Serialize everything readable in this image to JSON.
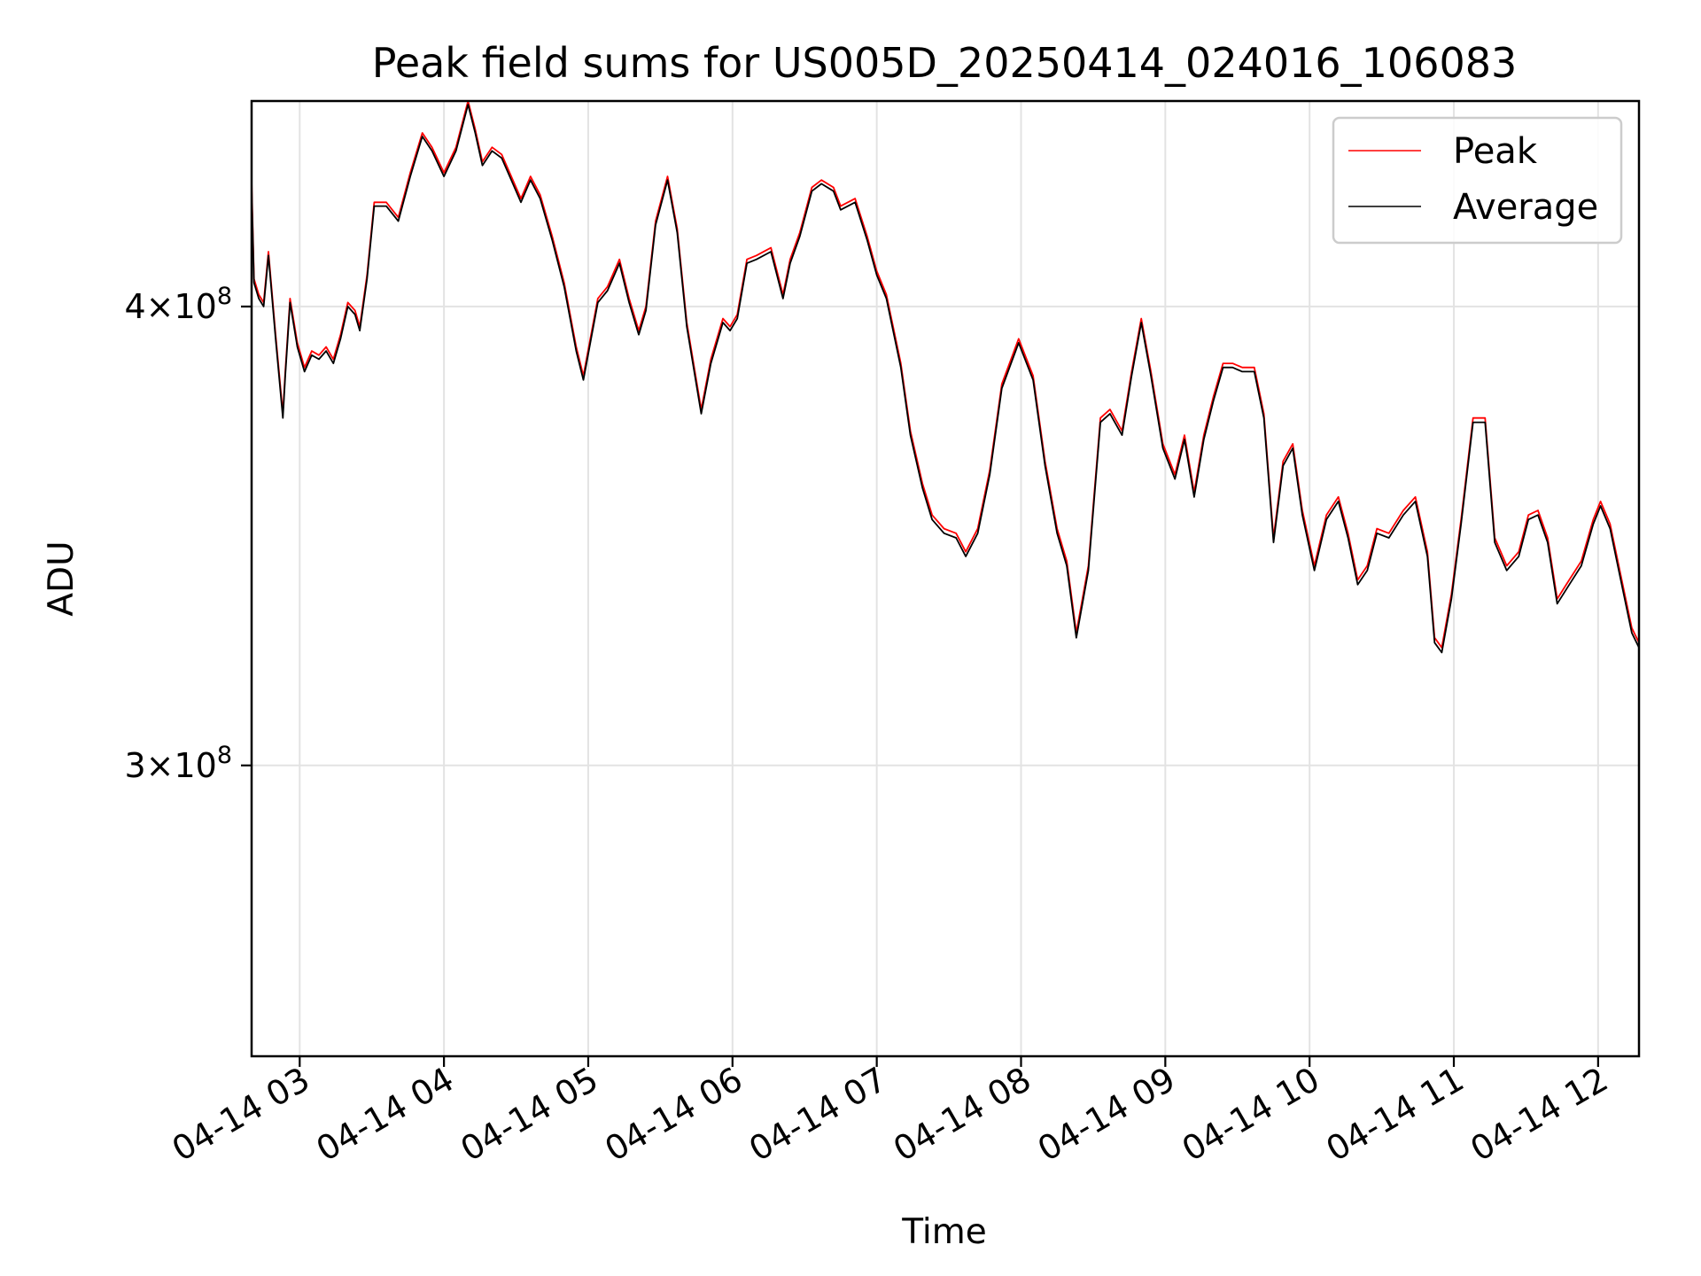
{
  "chart_data": {
    "type": "line",
    "title": "Peak field sums for US005D_20250414_024016_106083",
    "xlabel": "Time",
    "ylabel": "ADU",
    "yscale": "log",
    "grid": true,
    "legend_position": "top-right",
    "xlim": [
      "2025-04-14 02:40",
      "2025-04-14 12:17"
    ],
    "ylim": [
      250000000,
      455000000
    ],
    "x_ticks": [
      {
        "value": "2025-04-14 03:00",
        "label": "04-14 03"
      },
      {
        "value": "2025-04-14 04:00",
        "label": "04-14 04"
      },
      {
        "value": "2025-04-14 05:00",
        "label": "04-14 05"
      },
      {
        "value": "2025-04-14 06:00",
        "label": "04-14 06"
      },
      {
        "value": "2025-04-14 07:00",
        "label": "04-14 07"
      },
      {
        "value": "2025-04-14 08:00",
        "label": "04-14 08"
      },
      {
        "value": "2025-04-14 09:00",
        "label": "04-14 09"
      },
      {
        "value": "2025-04-14 10:00",
        "label": "04-14 10"
      },
      {
        "value": "2025-04-14 11:00",
        "label": "04-14 11"
      },
      {
        "value": "2025-04-14 12:00",
        "label": "04-14 12"
      }
    ],
    "y_ticks": [
      {
        "value": 400000000,
        "base": "4",
        "exp": "8"
      },
      {
        "value": 300000000,
        "base": "3",
        "exp": "8"
      }
    ],
    "x": [
      "2025-04-14 02:40",
      "2025-04-14 02:41",
      "2025-04-14 02:43",
      "2025-04-14 02:45",
      "2025-04-14 02:47",
      "2025-04-14 02:50",
      "2025-04-14 02:53",
      "2025-04-14 02:54",
      "2025-04-14 02:56",
      "2025-04-14 02:59",
      "2025-04-14 03:02",
      "2025-04-14 03:05",
      "2025-04-14 03:08",
      "2025-04-14 03:11",
      "2025-04-14 03:14",
      "2025-04-14 03:17",
      "2025-04-14 03:20",
      "2025-04-14 03:23",
      "2025-04-14 03:25",
      "2025-04-14 03:28",
      "2025-04-14 03:31",
      "2025-04-14 03:36",
      "2025-04-14 03:41",
      "2025-04-14 03:46",
      "2025-04-14 03:51",
      "2025-04-14 03:55",
      "2025-04-14 04:00",
      "2025-04-14 04:05",
      "2025-04-14 04:10",
      "2025-04-14 04:13",
      "2025-04-14 04:16",
      "2025-04-14 04:20",
      "2025-04-14 04:24",
      "2025-04-14 04:28",
      "2025-04-14 04:32",
      "2025-04-14 04:36",
      "2025-04-14 04:40",
      "2025-04-14 04:45",
      "2025-04-14 04:50",
      "2025-04-14 04:55",
      "2025-04-14 04:58",
      "2025-04-14 05:04",
      "2025-04-14 05:08",
      "2025-04-14 05:13",
      "2025-04-14 05:17",
      "2025-04-14 05:21",
      "2025-04-14 05:24",
      "2025-04-14 05:28",
      "2025-04-14 05:33",
      "2025-04-14 05:37",
      "2025-04-14 05:41",
      "2025-04-14 05:47",
      "2025-04-14 05:51",
      "2025-04-14 05:56",
      "2025-04-14 05:59",
      "2025-04-14 06:02",
      "2025-04-14 06:06",
      "2025-04-14 06:10",
      "2025-04-14 06:16",
      "2025-04-14 06:21",
      "2025-04-14 06:24",
      "2025-04-14 06:28",
      "2025-04-14 06:33",
      "2025-04-14 06:37",
      "2025-04-14 06:42",
      "2025-04-14 06:45",
      "2025-04-14 06:51",
      "2025-04-14 06:56",
      "2025-04-14 07:00",
      "2025-04-14 07:04",
      "2025-04-14 07:10",
      "2025-04-14 07:14",
      "2025-04-14 07:19",
      "2025-04-14 07:23",
      "2025-04-14 07:28",
      "2025-04-14 07:33",
      "2025-04-14 07:37",
      "2025-04-14 07:42",
      "2025-04-14 07:47",
      "2025-04-14 07:52",
      "2025-04-14 07:59",
      "2025-04-14 08:05",
      "2025-04-14 08:10",
      "2025-04-14 08:15",
      "2025-04-14 08:19",
      "2025-04-14 08:23",
      "2025-04-14 08:28",
      "2025-04-14 08:33",
      "2025-04-14 08:37",
      "2025-04-14 08:42",
      "2025-04-14 08:46",
      "2025-04-14 08:50",
      "2025-04-14 08:54",
      "2025-04-14 08:59",
      "2025-04-14 09:04",
      "2025-04-14 09:08",
      "2025-04-14 09:12",
      "2025-04-14 09:16",
      "2025-04-14 09:20",
      "2025-04-14 09:24",
      "2025-04-14 09:28",
      "2025-04-14 09:32",
      "2025-04-14 09:37",
      "2025-04-14 09:41",
      "2025-04-14 09:45",
      "2025-04-14 09:49",
      "2025-04-14 09:53",
      "2025-04-14 09:57",
      "2025-04-14 10:02",
      "2025-04-14 10:07",
      "2025-04-14 10:12",
      "2025-04-14 10:16",
      "2025-04-14 10:20",
      "2025-04-14 10:24",
      "2025-04-14 10:28",
      "2025-04-14 10:33",
      "2025-04-14 10:39",
      "2025-04-14 10:44",
      "2025-04-14 10:49",
      "2025-04-14 10:52",
      "2025-04-14 10:55",
      "2025-04-14 10:59",
      "2025-04-14 11:03",
      "2025-04-14 11:08",
      "2025-04-14 11:13",
      "2025-04-14 11:17",
      "2025-04-14 11:22",
      "2025-04-14 11:27",
      "2025-04-14 11:31",
      "2025-04-14 11:35",
      "2025-04-14 11:39",
      "2025-04-14 11:43",
      "2025-04-14 11:48",
      "2025-04-14 11:53",
      "2025-04-14 11:58",
      "2025-04-14 12:01",
      "2025-04-14 12:05",
      "2025-04-14 12:09",
      "2025-04-14 12:14",
      "2025-04-14 12:17"
    ],
    "series": [
      {
        "name": "Peak",
        "color": "#ff0000",
        "values": [
          433000000,
          407000000,
          403000000,
          401000000,
          414000000,
          393000000,
          374000000,
          384000000,
          402000000,
          391000000,
          385000000,
          389000000,
          388000000,
          390000000,
          387000000,
          393000000,
          401000000,
          399000000,
          395000000,
          408000000,
          427000000,
          427000000,
          423000000,
          435000000,
          446000000,
          442000000,
          435000000,
          442000000,
          455000000,
          447000000,
          438000000,
          442000000,
          440000000,
          434000000,
          428000000,
          434000000,
          429000000,
          418000000,
          406000000,
          390000000,
          383000000,
          402000000,
          405000000,
          412000000,
          402000000,
          394000000,
          400000000,
          422000000,
          434000000,
          420000000,
          396000000,
          375000000,
          387000000,
          397000000,
          395000000,
          398000000,
          412000000,
          413000000,
          415000000,
          403000000,
          412000000,
          419000000,
          431000000,
          433000000,
          431000000,
          426000000,
          428000000,
          418000000,
          409000000,
          403000000,
          386000000,
          370000000,
          358000000,
          351000000,
          348000000,
          347000000,
          343000000,
          348000000,
          361000000,
          381000000,
          392000000,
          383000000,
          363000000,
          348000000,
          341000000,
          326000000,
          340000000,
          373000000,
          375000000,
          370000000,
          384000000,
          397000000,
          384000000,
          367000000,
          360000000,
          369000000,
          356000000,
          369000000,
          378000000,
          386000000,
          386000000,
          385000000,
          385000000,
          374000000,
          346000000,
          363000000,
          367000000,
          352000000,
          340000000,
          351000000,
          355000000,
          347000000,
          337000000,
          340000000,
          348000000,
          347000000,
          352000000,
          355000000,
          343000000,
          325000000,
          323000000,
          334000000,
          350000000,
          373000000,
          373000000,
          346000000,
          340000000,
          343000000,
          351000000,
          352000000,
          346000000,
          333000000,
          337000000,
          341000000,
          350000000,
          354000000,
          349000000,
          339000000,
          327000000,
          324000000
        ]
      },
      {
        "name": "Average",
        "color": "#000000",
        "values": [
          431000000,
          406000000,
          402000000,
          400000000,
          413000000,
          392000000,
          373000000,
          383000000,
          401000000,
          390000000,
          384000000,
          388000000,
          387000000,
          389000000,
          386000000,
          392000000,
          400000000,
          398000000,
          394000000,
          407000000,
          426000000,
          426000000,
          422000000,
          434000000,
          445000000,
          441000000,
          434000000,
          441000000,
          454000000,
          446000000,
          437000000,
          441000000,
          439000000,
          433000000,
          427000000,
          433000000,
          428000000,
          417000000,
          405000000,
          389000000,
          382000000,
          401000000,
          404000000,
          411000000,
          401000000,
          393000000,
          399000000,
          421000000,
          433000000,
          419000000,
          395000000,
          374000000,
          386000000,
          396000000,
          394000000,
          397000000,
          411000000,
          412000000,
          414000000,
          402000000,
          411000000,
          418000000,
          430000000,
          432000000,
          430000000,
          425000000,
          427000000,
          417000000,
          408000000,
          402000000,
          385000000,
          369000000,
          357000000,
          350000000,
          347000000,
          346000000,
          342000000,
          347000000,
          360000000,
          380000000,
          391000000,
          382000000,
          362000000,
          347000000,
          340000000,
          325000000,
          339000000,
          372000000,
          374000000,
          369000000,
          383000000,
          396000000,
          383000000,
          366000000,
          359000000,
          368000000,
          355000000,
          368000000,
          377000000,
          385000000,
          385000000,
          384000000,
          384000000,
          373000000,
          345000000,
          362000000,
          366000000,
          351000000,
          339000000,
          350000000,
          354000000,
          346000000,
          336000000,
          339000000,
          347000000,
          346000000,
          351000000,
          354000000,
          342000000,
          324000000,
          322000000,
          333000000,
          349000000,
          372000000,
          372000000,
          345000000,
          339000000,
          342000000,
          350000000,
          351000000,
          345000000,
          332000000,
          336000000,
          340000000,
          349000000,
          353000000,
          348000000,
          338000000,
          326000000,
          323000000
        ]
      }
    ]
  }
}
